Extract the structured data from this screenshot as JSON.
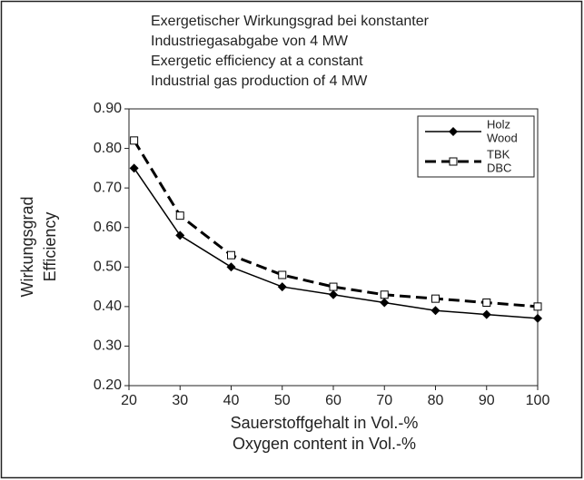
{
  "chart_data": {
    "type": "line",
    "title": [
      "Exergetischer Wirkungsgrad bei konstanter",
      "Industriegasabgabe von 4 MW",
      "Exergetic efficiency at a constant",
      "Industrial gas production of 4 MW"
    ],
    "xlabel": [
      "Sauerstoffgehalt in Vol.-%",
      "Oxygen content in Vol.-%"
    ],
    "ylabel": [
      "Wirkungsgrad",
      "Efficiency"
    ],
    "x": [
      21,
      30,
      40,
      50,
      60,
      70,
      80,
      90,
      100
    ],
    "series": [
      {
        "name": [
          "Holz",
          "Wood"
        ],
        "color": "#000000",
        "marker": "diamond",
        "dashed": false,
        "values": [
          0.75,
          0.58,
          0.5,
          0.45,
          0.43,
          0.41,
          0.39,
          0.38,
          0.37
        ]
      },
      {
        "name": [
          "TBK",
          "DBC"
        ],
        "color": "#000000",
        "marker": "square",
        "dashed": true,
        "values": [
          0.82,
          0.63,
          0.53,
          0.48,
          0.45,
          0.43,
          0.42,
          0.41,
          0.4
        ]
      }
    ],
    "xlim": [
      20,
      100
    ],
    "xticks": [
      20,
      30,
      40,
      50,
      60,
      70,
      80,
      90,
      100
    ],
    "ylim": [
      0.2,
      0.9
    ],
    "yticks": [
      {
        "value": 0.2,
        "label": "0.20"
      },
      {
        "value": 0.3,
        "label": "0.30"
      },
      {
        "value": 0.4,
        "label": "0.40"
      },
      {
        "value": 0.5,
        "label": "0.50"
      },
      {
        "value": 0.6,
        "label": "0.60"
      },
      {
        "value": 0.7,
        "label": "0.70"
      },
      {
        "value": 0.8,
        "label": "0.80"
      },
      {
        "value": 0.9,
        "label": "0.90"
      }
    ],
    "grid": false,
    "legend": "upper right"
  }
}
